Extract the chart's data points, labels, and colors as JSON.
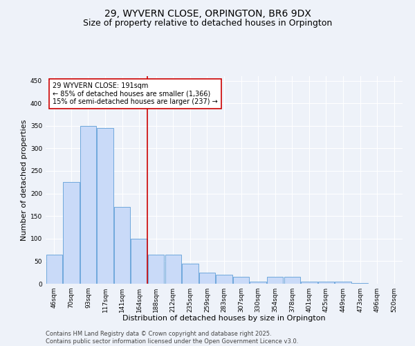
{
  "title1": "29, WYVERN CLOSE, ORPINGTON, BR6 9DX",
  "title2": "Size of property relative to detached houses in Orpington",
  "xlabel": "Distribution of detached houses by size in Orpington",
  "ylabel": "Number of detached properties",
  "categories": [
    "46sqm",
    "70sqm",
    "93sqm",
    "117sqm",
    "141sqm",
    "164sqm",
    "188sqm",
    "212sqm",
    "235sqm",
    "259sqm",
    "283sqm",
    "307sqm",
    "330sqm",
    "354sqm",
    "378sqm",
    "401sqm",
    "425sqm",
    "449sqm",
    "473sqm",
    "496sqm",
    "520sqm"
  ],
  "values": [
    65,
    225,
    350,
    345,
    170,
    100,
    65,
    65,
    45,
    25,
    20,
    15,
    5,
    15,
    15,
    5,
    5,
    5,
    2,
    0,
    0
  ],
  "bar_color": "#c9daf8",
  "bar_edge_color": "#6fa8dc",
  "vline_color": "#cc0000",
  "vline_pos": 5.5,
  "annotation_title": "29 WYVERN CLOSE: 191sqm",
  "annotation_line1": "← 85% of detached houses are smaller (1,366)",
  "annotation_line2": "15% of semi-detached houses are larger (237) →",
  "annotation_box_facecolor": "#ffffff",
  "annotation_box_edgecolor": "#cc0000",
  "ylim": [
    0,
    460
  ],
  "yticks": [
    0,
    50,
    100,
    150,
    200,
    250,
    300,
    350,
    400,
    450
  ],
  "footer1": "Contains HM Land Registry data © Crown copyright and database right 2025.",
  "footer2": "Contains public sector information licensed under the Open Government Licence v3.0.",
  "bg_color": "#eef2f9",
  "grid_color": "#ffffff",
  "title1_fontsize": 10,
  "title2_fontsize": 9,
  "tick_fontsize": 6.5,
  "axis_label_fontsize": 8,
  "annotation_fontsize": 7,
  "footer_fontsize": 6
}
